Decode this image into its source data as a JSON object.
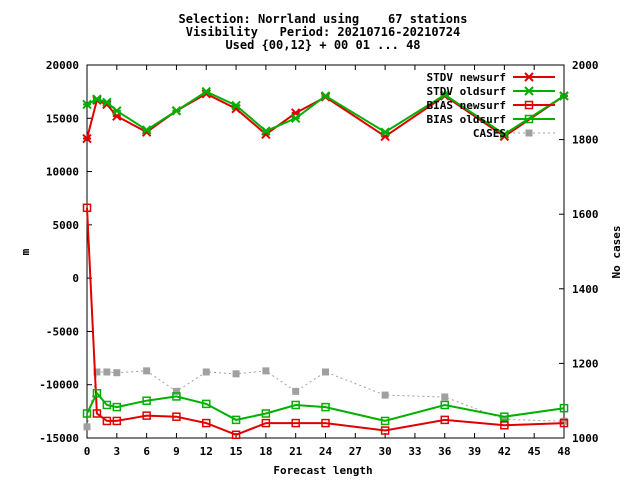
{
  "chart_data": {
    "type": "line",
    "title_lines": [
      "Selection: Norrland using    67 stations",
      "Visibility   Period: 20210716-20210724",
      "Used {00,12} + 00 01 ... 48"
    ],
    "xlabel": "Forecast length",
    "ylabel": "m",
    "y2label": "No cases",
    "xlim": [
      0,
      48
    ],
    "ylim": [
      -15000,
      20000
    ],
    "y2lim": [
      1000,
      2000
    ],
    "x_ticks": [
      0,
      3,
      6,
      9,
      12,
      15,
      18,
      21,
      24,
      27,
      30,
      33,
      36,
      39,
      42,
      45,
      48
    ],
    "y_ticks": [
      -15000,
      -10000,
      -5000,
      0,
      5000,
      10000,
      15000,
      20000
    ],
    "y2_ticks": [
      1000,
      1200,
      1400,
      1600,
      1800,
      2000
    ],
    "legend_position": "top-right",
    "grid": false,
    "series": [
      {
        "name": "STDV newsurf",
        "color": "#e00000",
        "marker": "x-star",
        "axis": "y",
        "x": [
          0,
          1,
          2,
          3,
          6,
          9,
          12,
          15,
          18,
          21,
          24,
          30,
          36,
          42,
          48
        ],
        "values": [
          13100,
          16700,
          16300,
          15200,
          13700,
          15700,
          17300,
          15900,
          13500,
          15500,
          17000,
          13300,
          17100,
          13300,
          17100
        ]
      },
      {
        "name": "STDV oldsurf",
        "color": "#00b000",
        "marker": "x-star",
        "axis": "y",
        "x": [
          0,
          1,
          2,
          3,
          6,
          9,
          12,
          15,
          18,
          21,
          24,
          30,
          36,
          42,
          48
        ],
        "values": [
          16300,
          16800,
          16500,
          15700,
          13900,
          15700,
          17500,
          16200,
          13800,
          15000,
          17100,
          13700,
          17200,
          13500,
          17100
        ]
      },
      {
        "name": "BIAS newsurf",
        "color": "#e00000",
        "marker": "square",
        "axis": "y",
        "x": [
          0,
          1,
          2,
          3,
          6,
          9,
          12,
          15,
          18,
          21,
          24,
          30,
          36,
          42,
          48
        ],
        "values": [
          6600,
          -12700,
          -13400,
          -13400,
          -12900,
          -13000,
          -13600,
          -14700,
          -13600,
          -13600,
          -13600,
          -14300,
          -13300,
          -13800,
          -13600
        ]
      },
      {
        "name": "BIAS oldsurf",
        "color": "#00b000",
        "marker": "square",
        "axis": "y",
        "x": [
          0,
          1,
          2,
          3,
          6,
          9,
          12,
          15,
          18,
          21,
          24,
          30,
          36,
          42,
          48
        ],
        "values": [
          -12700,
          -10800,
          -11900,
          -12100,
          -11500,
          -11100,
          -11800,
          -13300,
          -12700,
          -11900,
          -12100,
          -13400,
          -11900,
          -13000,
          -12200
        ]
      },
      {
        "name": "CASES",
        "color": "#a0a0a0",
        "marker": "filled-square",
        "axis": "y2",
        "x": [
          0,
          1,
          2,
          3,
          6,
          9,
          12,
          15,
          18,
          21,
          24,
          30,
          36,
          42,
          48
        ],
        "values": [
          1030,
          1177,
          1177,
          1175,
          1180,
          1125,
          1177,
          1172,
          1180,
          1125,
          1177,
          1115,
          1110,
          1050,
          1045
        ]
      }
    ]
  }
}
